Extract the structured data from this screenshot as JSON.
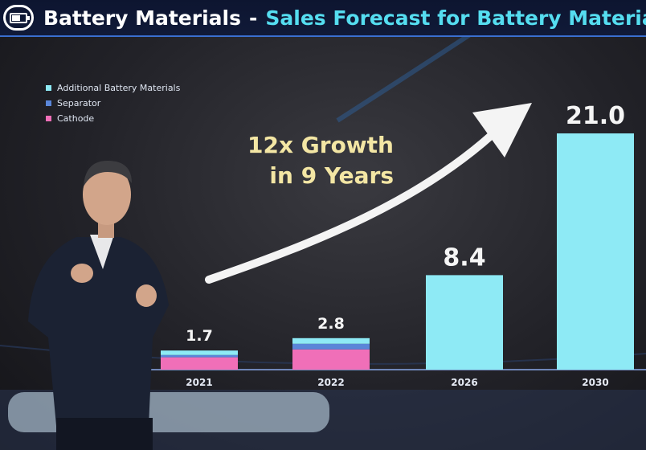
{
  "header": {
    "title": "Battery Materials",
    "separator": "-",
    "subtitle": "Sales Forecast for Battery Materials B",
    "icon": "battery-icon",
    "accent_color": "#55ddf0"
  },
  "annotation": {
    "line1": "12x Growth",
    "line2": "in 9 Years",
    "color": "#f3e6a4"
  },
  "chart_data": {
    "type": "bar",
    "stacked": true,
    "categories": [
      "2021",
      "2022",
      "2026",
      "2030"
    ],
    "totals": [
      1.7,
      2.8,
      8.4,
      21.0
    ],
    "total_labels": [
      "1.7",
      "2.8",
      "8.4",
      "21.0"
    ],
    "series": [
      {
        "name": "Cathode",
        "color": "#f06fb8",
        "values": [
          1.1,
          1.8,
          0,
          0
        ]
      },
      {
        "name": "Separator",
        "color": "#5a86d8",
        "values": [
          0.2,
          0.5,
          0,
          0
        ]
      },
      {
        "name": "Additional Battery Materials",
        "color": "#8eeaf5",
        "values": [
          0.4,
          0.5,
          8.4,
          21.0
        ]
      }
    ],
    "legend_order": [
      "Additional Battery Materials",
      "Separator",
      "Cathode"
    ],
    "legend_position": "top-left",
    "ylim": [
      0,
      23
    ],
    "grid": false
  }
}
